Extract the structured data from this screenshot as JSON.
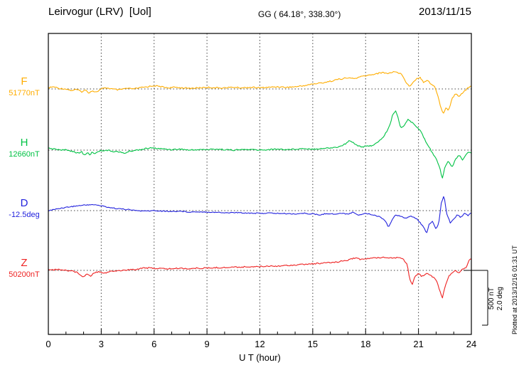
{
  "header": {
    "title": "Leirvogur (LRV)  [Uol]",
    "coords": "GG ( 64.18°, 338.30°)",
    "date": "2013/11/15"
  },
  "axis": {
    "xlabel": "U T (hour)",
    "tick_labels": [
      "0",
      "3",
      "6",
      "9",
      "12",
      "15",
      "18",
      "21",
      "24"
    ]
  },
  "scalebar": {
    "nt_label": "500 nT",
    "deg_label": "2.0 deg"
  },
  "note": {
    "plotted_at": "Plotted at 2013/12/16 01:31 UT"
  },
  "chart_data": {
    "type": "line",
    "title": "Leirvogur (LRV) [Uol] magnetogram 2013/11/15",
    "xlabel": "U T (hour)",
    "ylabel": "",
    "x_range": [
      0,
      24
    ],
    "x_ticks": [
      0,
      3,
      6,
      9,
      12,
      15,
      18,
      21,
      24
    ],
    "grid": "dotted vertical lines every 3 h; dotted horizontal baseline per trace",
    "legend_position": "left baseline labels",
    "scale": {
      "nT_per_div": 500,
      "deg_per_div": 2.0
    },
    "offsets_note": "offsets = deviation from baseline_value in the series unit",
    "series": [
      {
        "label": "F",
        "baseline_label": "51770nT",
        "baseline_value": 51770,
        "unit": "nT",
        "color": "#FFAD00",
        "x": [
          0,
          0.3,
          0.6,
          1.0,
          1.3,
          1.6,
          1.9,
          2.1,
          2.3,
          2.5,
          2.7,
          3.0,
          3.3,
          3.6,
          4.0,
          4.4,
          4.8,
          5.2,
          5.6,
          6.0,
          6.4,
          6.8,
          7.2,
          7.6,
          8.0,
          8.5,
          9.0,
          9.5,
          10.0,
          10.5,
          11.0,
          11.5,
          12.0,
          12.5,
          13.0,
          13.5,
          14.0,
          14.5,
          15.0,
          15.5,
          16.0,
          16.5,
          17.0,
          17.4,
          17.8,
          18.2,
          18.6,
          19.0,
          19.3,
          19.6,
          19.9,
          20.1,
          20.3,
          20.5,
          20.7,
          20.9,
          21.1,
          21.3,
          21.5,
          21.7,
          21.9,
          22.1,
          22.25,
          22.4,
          22.55,
          22.7,
          22.9,
          23.1,
          23.3,
          23.6,
          23.8,
          24.0
        ],
        "offsets": [
          10,
          20,
          5,
          0,
          -15,
          -5,
          -25,
          -10,
          -35,
          -15,
          -30,
          0,
          10,
          0,
          -10,
          5,
          0,
          10,
          20,
          30,
          20,
          10,
          15,
          10,
          5,
          10,
          15,
          10,
          10,
          15,
          10,
          15,
          10,
          15,
          20,
          15,
          20,
          30,
          45,
          55,
          70,
          90,
          100,
          95,
          115,
          125,
          140,
          150,
          140,
          160,
          145,
          125,
          60,
          20,
          65,
          95,
          105,
          60,
          85,
          45,
          25,
          -60,
          -160,
          -230,
          -170,
          -200,
          -90,
          -45,
          -65,
          -20,
          10,
          30
        ]
      },
      {
        "label": "H",
        "baseline_label": "12660nT",
        "baseline_value": 12660,
        "unit": "nT",
        "color": "#00C244",
        "x": [
          0,
          0.3,
          0.6,
          1.0,
          1.4,
          1.7,
          1.9,
          2.05,
          2.2,
          2.35,
          2.5,
          2.65,
          2.8,
          3.0,
          3.3,
          3.6,
          4.0,
          4.3,
          4.6,
          5.0,
          5.4,
          5.8,
          6.2,
          6.6,
          7.0,
          7.5,
          8.0,
          8.5,
          9.0,
          9.5,
          10.0,
          10.5,
          11.0,
          11.5,
          12.0,
          12.5,
          13.0,
          13.5,
          14.0,
          14.5,
          15.0,
          15.5,
          16.0,
          16.5,
          16.9,
          17.1,
          17.3,
          17.5,
          17.8,
          18.1,
          18.4,
          18.7,
          19.0,
          19.2,
          19.4,
          19.55,
          19.7,
          19.85,
          20.0,
          20.2,
          20.4,
          20.6,
          20.8,
          21.0,
          21.2,
          21.4,
          21.6,
          21.8,
          22.0,
          22.2,
          22.35,
          22.5,
          22.7,
          22.9,
          23.1,
          23.3,
          23.5,
          23.7,
          23.85,
          24.0
        ],
        "offsets": [
          15,
          10,
          5,
          0,
          -10,
          -30,
          -15,
          -50,
          -20,
          -45,
          -15,
          -35,
          -10,
          -5,
          0,
          -10,
          -15,
          -30,
          -10,
          0,
          10,
          20,
          15,
          10,
          5,
          10,
          0,
          5,
          5,
          10,
          5,
          0,
          5,
          5,
          0,
          5,
          10,
          5,
          10,
          15,
          10,
          15,
          20,
          30,
          60,
          90,
          70,
          45,
          30,
          35,
          45,
          70,
          120,
          170,
          240,
          330,
          360,
          290,
          200,
          230,
          280,
          255,
          230,
          200,
          150,
          80,
          30,
          -30,
          -70,
          -160,
          -260,
          -150,
          -100,
          -160,
          -80,
          -45,
          -90,
          -35,
          -15,
          -25
        ]
      },
      {
        "label": "D",
        "baseline_label": "-12.5deg",
        "baseline_value": -12.5,
        "unit": "deg",
        "color": "#2222DD",
        "x": [
          0,
          0.4,
          0.8,
          1.2,
          1.6,
          2.0,
          2.4,
          2.8,
          3.2,
          3.6,
          4.0,
          4.5,
          5.0,
          5.5,
          6.0,
          6.5,
          7.0,
          7.5,
          8.0,
          8.5,
          9.0,
          9.5,
          10.0,
          10.5,
          11.0,
          11.5,
          12.0,
          12.5,
          13.0,
          13.5,
          14.0,
          14.5,
          15.0,
          15.4,
          15.8,
          16.2,
          16.6,
          17.0,
          17.3,
          17.6,
          18.0,
          18.4,
          18.8,
          19.1,
          19.3,
          19.5,
          19.7,
          20.0,
          20.3,
          20.6,
          20.9,
          21.1,
          21.3,
          21.45,
          21.6,
          21.8,
          22.0,
          22.15,
          22.3,
          22.45,
          22.6,
          22.8,
          23.0,
          23.2,
          23.4,
          23.6,
          23.8,
          24.0
        ],
        "offsets": [
          0.0,
          0.05,
          0.1,
          0.14,
          0.17,
          0.2,
          0.22,
          0.2,
          0.15,
          0.1,
          0.07,
          0.04,
          0.0,
          -0.02,
          0.0,
          -0.02,
          -0.03,
          -0.02,
          -0.05,
          -0.04,
          -0.05,
          -0.06,
          -0.08,
          -0.07,
          -0.08,
          -0.09,
          -0.1,
          -0.09,
          -0.1,
          -0.11,
          -0.12,
          -0.1,
          -0.12,
          -0.16,
          -0.1,
          -0.13,
          -0.1,
          -0.12,
          -0.06,
          -0.16,
          -0.1,
          -0.15,
          -0.22,
          -0.35,
          -0.6,
          -0.35,
          -0.15,
          -0.2,
          -0.28,
          -0.2,
          -0.3,
          -0.45,
          -0.6,
          -0.85,
          -0.5,
          -0.4,
          -0.7,
          -0.45,
          0.3,
          0.55,
          -0.1,
          -0.45,
          -0.3,
          -0.15,
          -0.25,
          -0.1,
          -0.18,
          -0.08
        ]
      },
      {
        "label": "Z",
        "baseline_label": "50200nT",
        "baseline_value": 50200,
        "unit": "nT",
        "color": "#EE2222",
        "x": [
          0,
          0.3,
          0.6,
          1.0,
          1.4,
          1.7,
          2.0,
          2.2,
          2.4,
          2.6,
          2.9,
          3.2,
          3.5,
          3.8,
          4.2,
          4.6,
          5.0,
          5.4,
          5.8,
          6.2,
          6.6,
          7.0,
          7.5,
          8.0,
          8.5,
          9.0,
          9.5,
          10.0,
          10.5,
          11.0,
          11.5,
          12.0,
          12.5,
          13.0,
          13.5,
          14.0,
          14.5,
          15.0,
          15.5,
          16.0,
          16.5,
          17.0,
          17.4,
          17.7,
          18.0,
          18.4,
          18.8,
          19.2,
          19.5,
          19.8,
          20.1,
          20.35,
          20.5,
          20.65,
          20.8,
          21.0,
          21.2,
          21.5,
          21.8,
          22.0,
          22.2,
          22.35,
          22.5,
          22.7,
          22.9,
          23.1,
          23.3,
          23.5,
          23.7,
          23.85,
          24.0
        ],
        "offsets": [
          10,
          5,
          8,
          0,
          -5,
          -25,
          -60,
          -30,
          -50,
          -20,
          -10,
          -25,
          -10,
          -5,
          0,
          5,
          10,
          25,
          20,
          18,
          15,
          15,
          20,
          15,
          20,
          20,
          25,
          25,
          30,
          30,
          35,
          35,
          40,
          40,
          45,
          50,
          55,
          60,
          65,
          70,
          80,
          95,
          115,
          100,
          105,
          112,
          118,
          120,
          112,
          118,
          108,
          60,
          -80,
          -130,
          -60,
          -30,
          -55,
          -20,
          -60,
          -85,
          -180,
          -255,
          -150,
          -60,
          -20,
          0,
          -20,
          10,
          25,
          85,
          110
        ]
      }
    ]
  }
}
